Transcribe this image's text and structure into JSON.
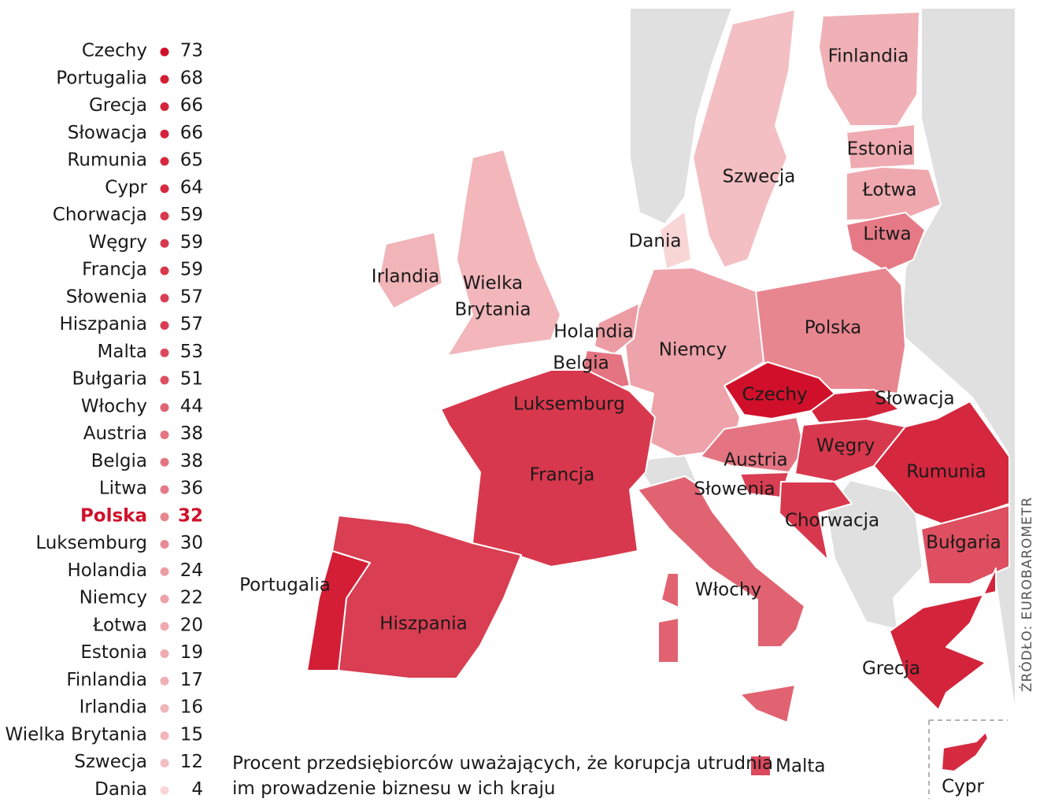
{
  "ranking": [
    {
      "name": "Czechy",
      "value": 73
    },
    {
      "name": "Portugalia",
      "value": 68
    },
    {
      "name": "Grecja",
      "value": 66
    },
    {
      "name": "Słowacja",
      "value": 66
    },
    {
      "name": "Rumunia",
      "value": 65
    },
    {
      "name": "Cypr",
      "value": 64
    },
    {
      "name": "Chorwacja",
      "value": 59
    },
    {
      "name": "Węgry",
      "value": 59
    },
    {
      "name": "Francja",
      "value": 59
    },
    {
      "name": "Słowenia",
      "value": 57
    },
    {
      "name": "Hiszpania",
      "value": 57
    },
    {
      "name": "Malta",
      "value": 53
    },
    {
      "name": "Bułgaria",
      "value": 51
    },
    {
      "name": "Włochy",
      "value": 44
    },
    {
      "name": "Austria",
      "value": 38
    },
    {
      "name": "Belgia",
      "value": 38
    },
    {
      "name": "Litwa",
      "value": 36
    },
    {
      "name": "Polska",
      "value": 32,
      "highlight": true
    },
    {
      "name": "Luksemburg",
      "value": 30
    },
    {
      "name": "Holandia",
      "value": 24
    },
    {
      "name": "Niemcy",
      "value": 22
    },
    {
      "name": "Łotwa",
      "value": 20
    },
    {
      "name": "Estonia",
      "value": 19
    },
    {
      "name": "Finlandia",
      "value": 17
    },
    {
      "name": "Irlandia",
      "value": 16
    },
    {
      "name": "Wielka Brytania",
      "value": 15
    },
    {
      "name": "Szwecja",
      "value": 12
    },
    {
      "name": "Dania",
      "value": 4
    }
  ],
  "color_scale": [
    "#f8d6d6",
    "#d0102a"
  ],
  "highlight_color": "#d0102a",
  "caption": "Procent przedsiębiorców uważających, że korupcja utrudnia im prowadzenie biznesu w ich kraju",
  "source": "ŹRÓDŁO: EUROBAROMETR"
}
